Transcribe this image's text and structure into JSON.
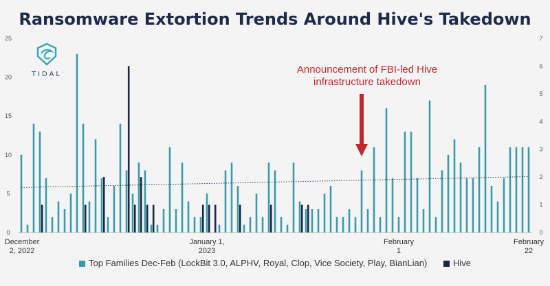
{
  "chart_data": {
    "type": "bar",
    "title": "Ransomware Extortion Trends Around Hive's Takedown",
    "x_tick_labels": [
      {
        "lines": [
          "December",
          "2, 2022"
        ],
        "date": "2022-12-02"
      },
      {
        "lines": [
          "January 1,",
          "2023"
        ],
        "date": "2023-01-01"
      },
      {
        "lines": [
          "February",
          "1"
        ],
        "date": "2023-02-01"
      },
      {
        "lines": [
          "February",
          "22"
        ],
        "date": "2023-02-22"
      }
    ],
    "y_left": {
      "ticks": [
        "0",
        "5",
        "10",
        "15",
        "20",
        "25"
      ],
      "ylim": [
        0,
        25
      ]
    },
    "y_right": {
      "ticks": [
        "0",
        "1",
        "2",
        "3",
        "4",
        "5",
        "6",
        "7"
      ],
      "ylim": [
        0,
        7
      ]
    },
    "series": [
      {
        "name": "Top Families Dec-Feb (LockBit 3.0, ALPHV, Royal, Clop, Vice Society, Play, BianLian)",
        "axis": "left",
        "color": "#3a9bab",
        "dates": [
          "2022-12-02",
          "2022-12-03",
          "2022-12-04",
          "2022-12-05",
          "2022-12-06",
          "2022-12-07",
          "2022-12-08",
          "2022-12-09",
          "2022-12-10",
          "2022-12-11",
          "2022-12-12",
          "2022-12-13",
          "2022-12-14",
          "2022-12-15",
          "2022-12-16",
          "2022-12-17",
          "2022-12-18",
          "2022-12-19",
          "2022-12-20",
          "2022-12-21",
          "2022-12-22",
          "2022-12-23",
          "2022-12-24",
          "2022-12-25",
          "2022-12-26",
          "2022-12-27",
          "2022-12-28",
          "2022-12-29",
          "2022-12-30",
          "2022-12-31",
          "2023-01-01",
          "2023-01-02",
          "2023-01-03",
          "2023-01-04",
          "2023-01-05",
          "2023-01-06",
          "2023-01-07",
          "2023-01-08",
          "2023-01-09",
          "2023-01-10",
          "2023-01-11",
          "2023-01-12",
          "2023-01-13",
          "2023-01-14",
          "2023-01-15",
          "2023-01-16",
          "2023-01-17",
          "2023-01-18",
          "2023-01-19",
          "2023-01-20",
          "2023-01-21",
          "2023-01-22",
          "2023-01-23",
          "2023-01-24",
          "2023-01-25",
          "2023-01-26",
          "2023-01-27",
          "2023-01-28",
          "2023-01-29",
          "2023-01-30",
          "2023-01-31",
          "2023-02-01",
          "2023-02-02",
          "2023-02-03",
          "2023-02-04",
          "2023-02-05",
          "2023-02-06",
          "2023-02-07",
          "2023-02-08",
          "2023-02-09",
          "2023-02-10",
          "2023-02-11",
          "2023-02-12",
          "2023-02-13",
          "2023-02-14",
          "2023-02-15",
          "2023-02-16",
          "2023-02-17",
          "2023-02-18",
          "2023-02-19",
          "2023-02-20",
          "2023-02-21",
          "2023-02-22"
        ],
        "values": [
          10,
          1,
          14,
          13,
          7,
          2,
          4,
          3,
          5,
          23,
          14,
          4,
          12,
          7,
          2,
          6,
          14,
          8,
          5,
          9,
          8,
          1,
          1,
          3,
          11,
          3,
          9,
          4,
          2,
          2,
          5,
          0,
          1,
          8,
          9,
          6,
          1,
          2,
          5,
          2,
          9,
          8,
          2,
          1,
          9,
          4,
          3,
          3,
          3,
          5,
          6,
          2,
          2,
          3,
          2,
          8,
          3,
          11,
          2,
          16,
          7,
          2,
          13,
          13,
          7,
          3,
          17,
          2,
          8,
          10,
          12,
          9,
          7,
          7,
          11,
          19,
          6,
          4,
          7,
          11,
          11,
          11,
          11
        ]
      },
      {
        "name": "Hive",
        "axis": "right",
        "color": "#1b2640",
        "dates": [
          "2022-12-05",
          "2022-12-12",
          "2022-12-15",
          "2022-12-19",
          "2022-12-20",
          "2022-12-21",
          "2022-12-22",
          "2022-12-23",
          "2022-12-31",
          "2023-01-01",
          "2023-01-02",
          "2023-01-06",
          "2023-01-11",
          "2023-01-16",
          "2023-01-17"
        ],
        "values": [
          1,
          1,
          2,
          6,
          1,
          2,
          1,
          1,
          1,
          1,
          1,
          1,
          1,
          1,
          1
        ]
      }
    ],
    "trendline": {
      "series": "Top Families Dec-Feb (LockBit 3.0, ALPHV, Royal, Clop, Vice Society, Play, BianLian)",
      "start": 5.8,
      "end": 7.2,
      "style": "dotted"
    },
    "annotation": {
      "lines": [
        "Announcement of FBI-led Hive",
        "infrastructure takedown"
      ],
      "color": "#c0282d",
      "arrow_date": "2023-01-26"
    },
    "legend_position": "bottom"
  },
  "logo": {
    "text": "TIDAL"
  },
  "legend": [
    {
      "label": "Top Families Dec-Feb (LockBit 3.0, ALPHV, Royal, Clop, Vice Society, Play, BianLian)",
      "color": "#3a9bab"
    },
    {
      "label": "Hive",
      "color": "#1b2640"
    }
  ]
}
